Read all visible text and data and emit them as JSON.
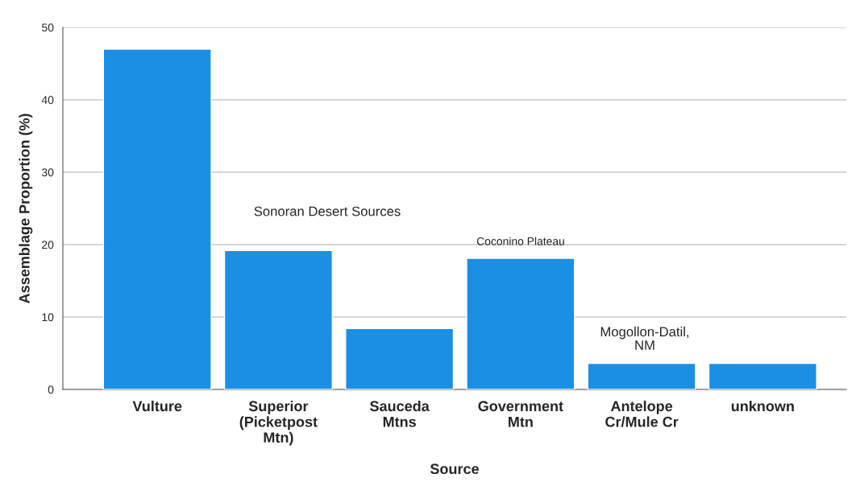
{
  "chart_data": {
    "type": "bar",
    "xlabel": "Source",
    "ylabel": "Assemblage Proportion (%)",
    "categories": [
      "Vulture",
      "Superior\n(Picketpost\nMtn)",
      "Sauceda\nMtns",
      "Government\nMtn",
      "Antelope\nCr/Mule Cr",
      "unknown"
    ],
    "values": [
      47.0,
      19.2,
      8.4,
      18.1,
      3.6,
      3.6
    ],
    "color": "#1a8fe3",
    "ylim": [
      0,
      50
    ],
    "yticks": [
      0,
      10,
      20,
      30,
      40,
      50
    ],
    "grid": "y",
    "annotations": [
      "Sonoran Desert Sources",
      "Coconino Plateau",
      "Mogollon-Datil,\nNM"
    ]
  }
}
